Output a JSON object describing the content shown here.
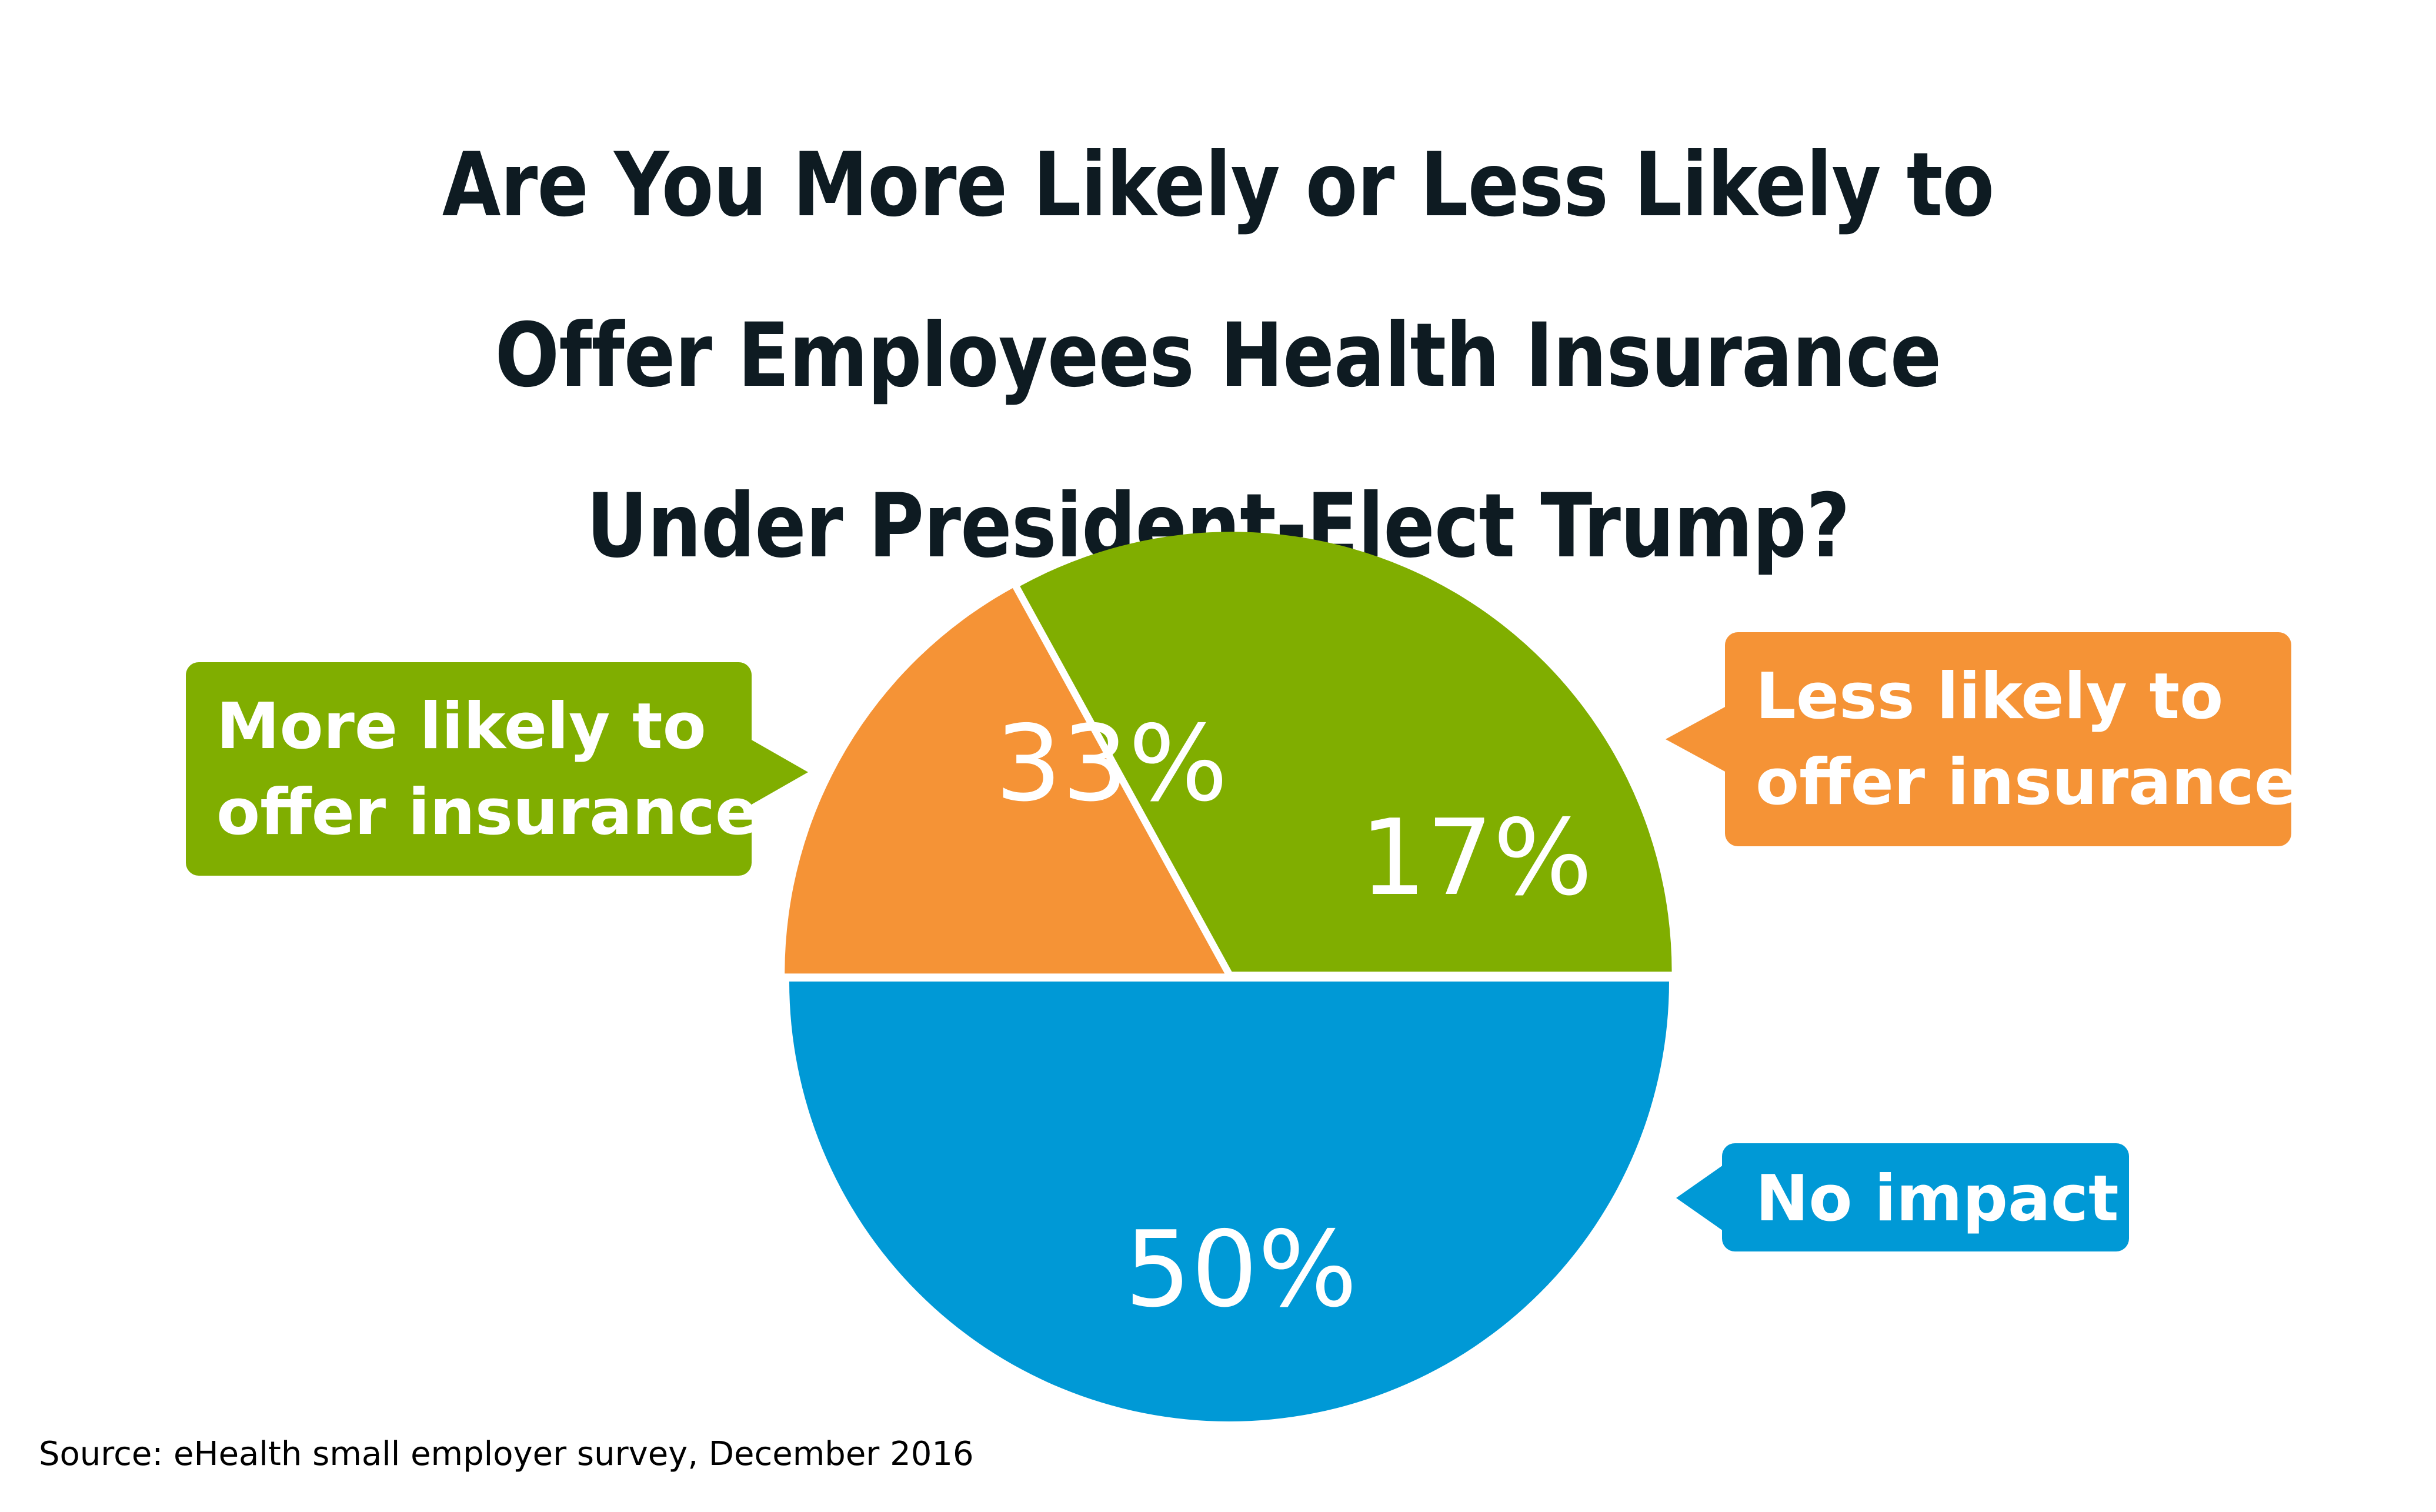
{
  "chart_data": {
    "type": "pie",
    "title": "Are You More Likely or Less Likely to Offer Employees Health Insurance Under President-Elect Trump?",
    "title_lines": [
      "Are You More Likely or Less Likely to",
      "Offer Employees Health Insurance",
      "Under President-Elect Trump?"
    ],
    "slices": [
      {
        "name": "No impact",
        "value": 50,
        "label": "50%",
        "color": "#0099D6",
        "callout_lines": [
          "No impact"
        ],
        "callout_side": "right"
      },
      {
        "name": "Less likely to offer insurance",
        "value": 17,
        "label": "17%",
        "color": "#F59336",
        "callout_lines": [
          "Less likely to",
          "offer insurance"
        ],
        "callout_side": "right"
      },
      {
        "name": "More likely to offer insurance",
        "value": 33,
        "label": "33%",
        "color": "#80AE00",
        "callout_lines": [
          "More likely to",
          "offer insurance"
        ],
        "callout_side": "left"
      }
    ],
    "legend": "callouts",
    "source": "Source: eHealth small employer survey, December 2016"
  }
}
